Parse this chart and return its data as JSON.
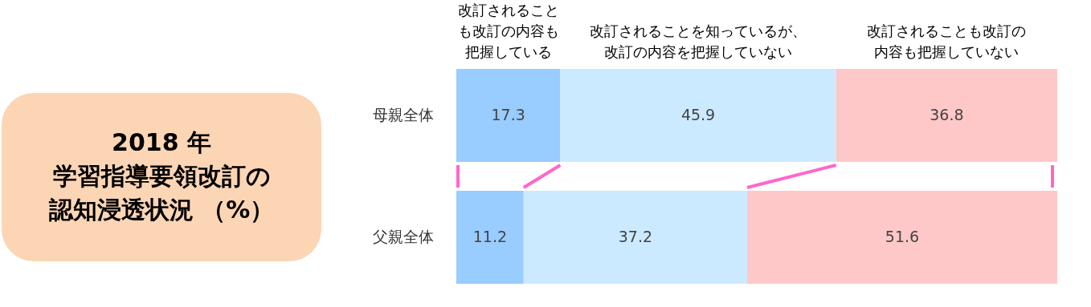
{
  "chart_data": {
    "type": "bar",
    "orientation": "horizontal",
    "stacked": true,
    "data_labels": true,
    "title": "2018 年",
    "subtitle": "学習指導要領改訂の認知浸透状況 （%）",
    "categories": [
      "母親全体",
      "父親全体"
    ],
    "series": [
      {
        "name": "改訂されることも改訂の内容も把握している",
        "color": "#99ccff",
        "values": [
          17.3,
          11.2
        ]
      },
      {
        "name": "改訂されることを知っているが、改訂の内容を把握していない",
        "color": "#cceaff",
        "values": [
          45.9,
          37.2
        ]
      },
      {
        "name": "改訂されることも改訂の内容も把握していない",
        "color": "#ffc8c8",
        "values": [
          36.8,
          51.6
        ]
      }
    ]
  }
}
